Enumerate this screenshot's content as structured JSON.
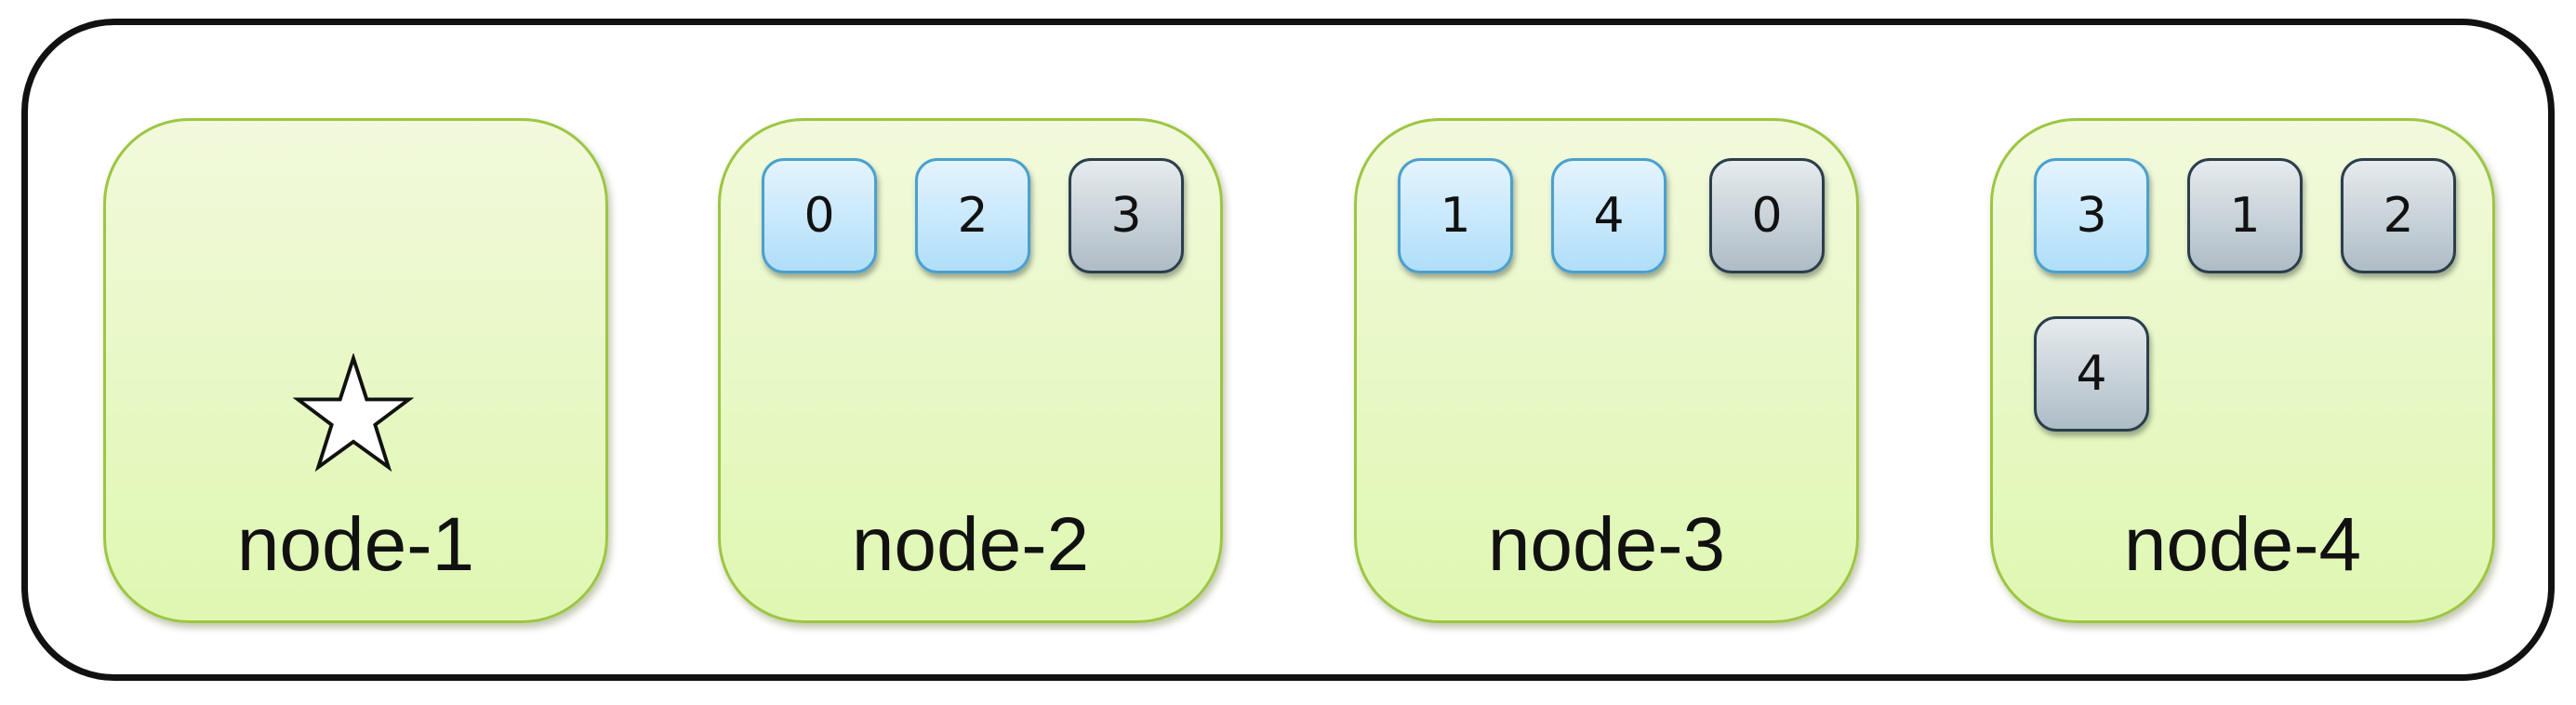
{
  "nodes": [
    {
      "label": "node-1",
      "has_star": true,
      "shards": []
    },
    {
      "label": "node-2",
      "shards": [
        {
          "id": "0",
          "kind": "primary"
        },
        {
          "id": "2",
          "kind": "primary"
        },
        {
          "id": "3",
          "kind": "replica"
        }
      ]
    },
    {
      "label": "node-3",
      "shards": [
        {
          "id": "1",
          "kind": "primary"
        },
        {
          "id": "4",
          "kind": "primary"
        },
        {
          "id": "0",
          "kind": "replica"
        }
      ]
    },
    {
      "label": "node-4",
      "shards": [
        {
          "id": "3",
          "kind": "primary"
        },
        {
          "id": "1",
          "kind": "replica"
        },
        {
          "id": "2",
          "kind": "replica"
        },
        {
          "id": "4",
          "kind": "replica"
        }
      ]
    }
  ],
  "legend": {
    "primary_color": "#b0def9",
    "replica_color": "#aebcc6",
    "node_color": "#e6f8c2",
    "star_icon": "star-icon"
  }
}
